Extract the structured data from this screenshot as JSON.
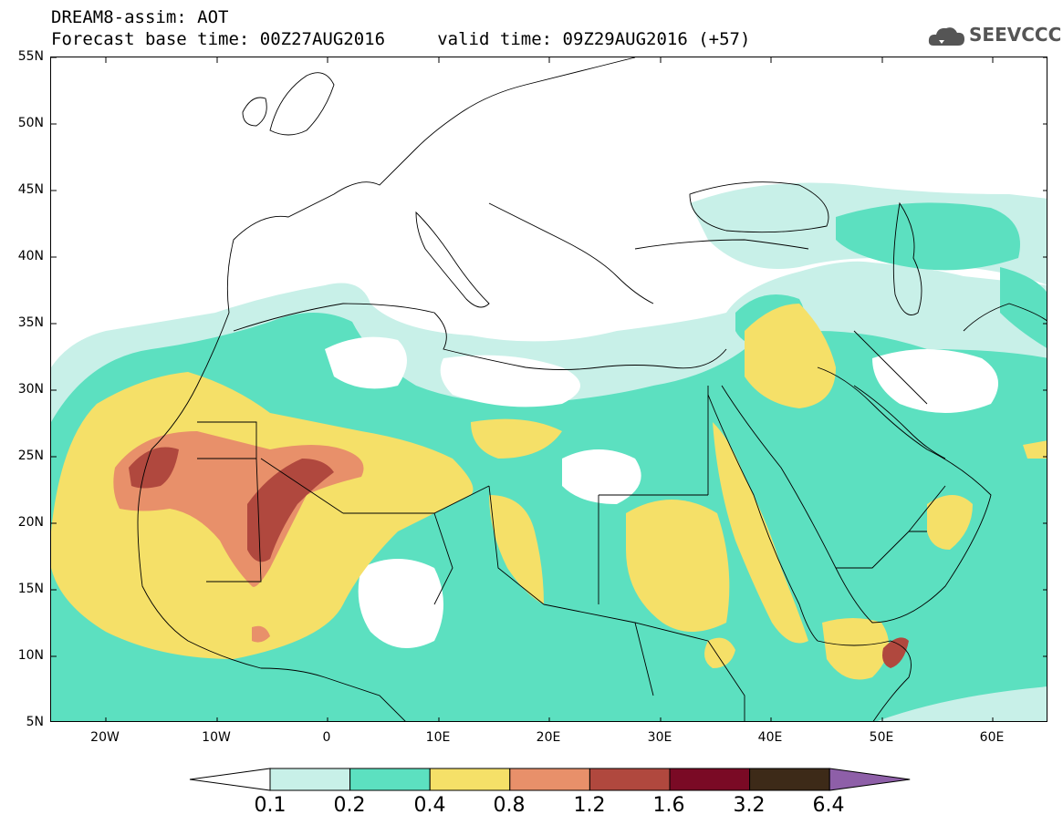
{
  "header": {
    "title_line1": "DREAM8-assim: AOT",
    "title_line2": "Forecast base time: 00Z27AUG2016     valid time: 09Z29AUG2016 (+57)"
  },
  "logo": {
    "text": "SEEVCCC",
    "icon": "cloud-icon"
  },
  "map": {
    "latitude_labels": [
      "55N",
      "50N",
      "45N",
      "40N",
      "35N",
      "30N",
      "25N",
      "20N",
      "15N",
      "10N",
      "5N"
    ],
    "longitude_labels": [
      "20W",
      "10W",
      "0",
      "10E",
      "20E",
      "30E",
      "40E",
      "50E",
      "60E"
    ],
    "lon_range": [
      -25,
      65
    ],
    "lat_range": [
      5,
      55
    ]
  },
  "colorbar": {
    "labels": [
      "0.1",
      "0.2",
      "0.4",
      "0.8",
      "1.2",
      "1.6",
      "3.2",
      "6.4"
    ],
    "colors": [
      "#ffffff",
      "#c8f0e8",
      "#5ce0c0",
      "#f5e068",
      "#e8906a",
      "#b0483e",
      "#7a0a25",
      "#3d2a18",
      "#8e5fa8"
    ]
  },
  "colors": {
    "aot_0_1": "#c8f0e8",
    "aot_0_2": "#5ce0c0",
    "aot_0_4": "#f5e068",
    "aot_0_8": "#e8906a",
    "aot_1_2": "#b0483e"
  }
}
